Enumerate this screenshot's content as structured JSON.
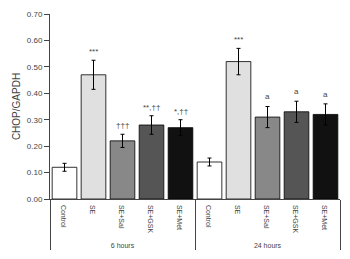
{
  "chart_data": {
    "type": "bar",
    "ylabel": "CHOP/GAPDH",
    "categories": [
      "Control",
      "SE",
      "SE+Sal",
      "SE+GSK",
      "SE+Met"
    ],
    "series": [
      {
        "name": "6 hours",
        "values": [
          0.12,
          0.47,
          0.22,
          0.28,
          0.27
        ],
        "errors": [
          0.015,
          0.055,
          0.025,
          0.035,
          0.03
        ]
      },
      {
        "name": "24 hours",
        "values": [
          0.14,
          0.52,
          0.31,
          0.33,
          0.32
        ],
        "errors": [
          0.015,
          0.05,
          0.04,
          0.04,
          0.04
        ]
      }
    ],
    "colors": [
      "white",
      "#e0e0e0",
      "#888888",
      "#555555",
      "#111111"
    ],
    "ylim": [
      0.0,
      0.7
    ],
    "yticks": [
      {
        "value": 0.0,
        "label": "0.00"
      },
      {
        "value": 0.1,
        "label": "0.10"
      },
      {
        "value": 0.2,
        "label": "0.20"
      },
      {
        "value": 0.3,
        "label": "0.30"
      },
      {
        "value": 0.4,
        "label": "0.40"
      },
      {
        "value": 0.5,
        "label": "0.50"
      },
      {
        "value": 0.6,
        "label": "0.60"
      },
      {
        "value": 0.7,
        "label": "0.70"
      }
    ],
    "grid": false,
    "annotations": [
      {
        "series": "6 hours",
        "category": "SE",
        "text": "***",
        "y": 0.535
      },
      {
        "series": "6 hours",
        "category": "SE+Sal",
        "text": "†††",
        "y": 0.252
      },
      {
        "series": "6 hours",
        "category": "SE+GSK",
        "text": "**,††",
        "y": 0.322
      },
      {
        "series": "6 hours",
        "category": "SE+Met",
        "text": "*,††",
        "y": 0.308
      },
      {
        "series": "24 hours",
        "category": "SE",
        "text": "***",
        "y": 0.578
      },
      {
        "series": "24 hours",
        "category": "SE+Sal",
        "text": "a",
        "y": 0.362
      },
      {
        "series": "24 hours",
        "category": "SE+GSK",
        "text": "a",
        "y": 0.382
      },
      {
        "series": "24 hours",
        "category": "SE+Met",
        "text": "a",
        "y": 0.372
      }
    ]
  }
}
